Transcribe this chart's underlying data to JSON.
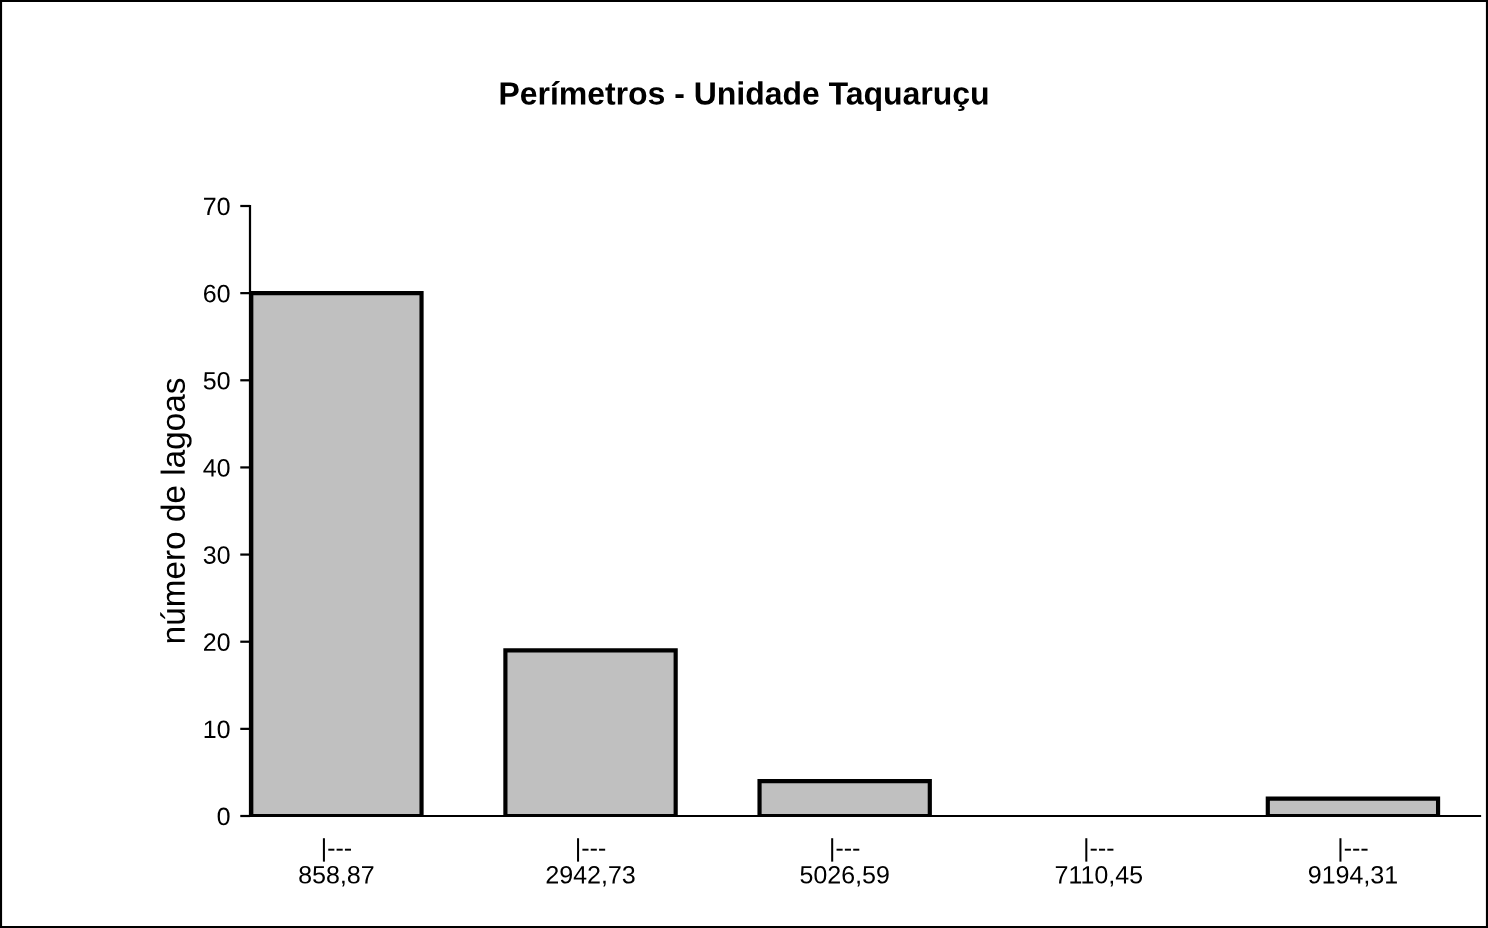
{
  "chart_data": {
    "type": "bar",
    "title": "Perímetros - Unidade Taquaruçu",
    "ylabel": "número de lagoas",
    "categories": [
      "|---\n858,87",
      "|---\n2942,73",
      "|---\n5026,59",
      "|---\n7110,45",
      "|---\n9194,31"
    ],
    "values": [
      60,
      19,
      4,
      0,
      2
    ],
    "color": "#c0c0c0",
    "ylim": [
      0,
      70
    ],
    "yticks": [
      0,
      10,
      20,
      30,
      40,
      50,
      60,
      70
    ],
    "grid": false,
    "legend": false
  }
}
